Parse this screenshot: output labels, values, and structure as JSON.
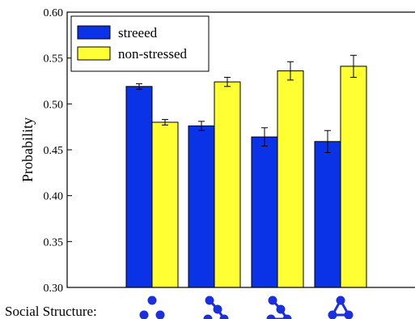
{
  "chart_data": {
    "type": "bar",
    "title": "",
    "xlabel": "Social Structure:",
    "ylabel": "Probability",
    "ylim": [
      0.3,
      0.6
    ],
    "yticks": [
      0.3,
      0.35,
      0.4,
      0.45,
      0.5,
      0.55,
      0.6
    ],
    "ytick_labels": [
      "0.30",
      "0.35",
      "0.40",
      "0.45",
      "0.50",
      "0.55",
      "0.60"
    ],
    "categories": [
      "structure-1",
      "structure-2",
      "structure-3",
      "structure-4"
    ],
    "series": [
      {
        "name": "streeed",
        "color": "#0a32e6",
        "values": [
          0.519,
          0.476,
          0.464,
          0.459
        ],
        "errors": [
          0.003,
          0.005,
          0.01,
          0.012
        ]
      },
      {
        "name": "non-stressed",
        "color": "#ffff33",
        "values": [
          0.48,
          0.524,
          0.536,
          0.541
        ],
        "errors": [
          0.003,
          0.005,
          0.01,
          0.012
        ]
      }
    ],
    "legend_position": "top-left",
    "grid": false,
    "category_icons": [
      "three-nodes-icon",
      "chain-nodes-icon",
      "triangle-tail-icon",
      "triangle-nodes-icon"
    ],
    "icon_color": "#1a2fe0"
  }
}
